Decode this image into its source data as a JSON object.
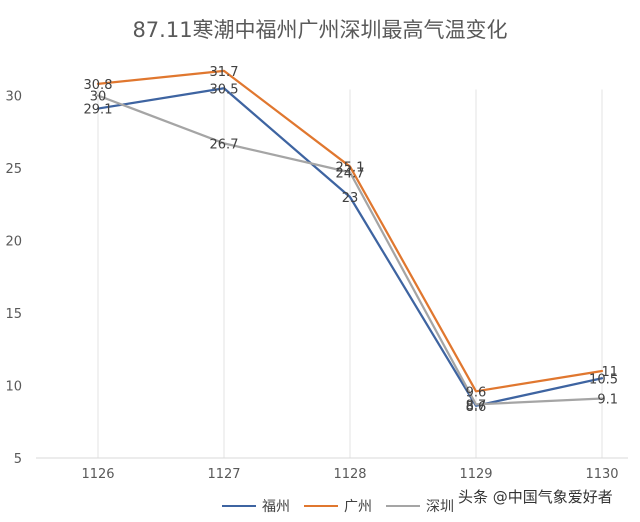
{
  "chart_data": {
    "type": "line",
    "title": "87.11寒潮中福州广州深圳最高气温变化",
    "categories": [
      "1126",
      "1127",
      "1128",
      "1129",
      "1130"
    ],
    "ylim": [
      5,
      33
    ],
    "yticks": [
      5,
      10,
      15,
      20,
      25,
      30
    ],
    "grid": "vertical",
    "legend": "bottom",
    "series": [
      {
        "name": "福州",
        "color": "#3e64a1",
        "values": [
          29.1,
          30.5,
          23,
          8.6,
          10.5
        ]
      },
      {
        "name": "广州",
        "color": "#e0772f",
        "values": [
          30.8,
          31.7,
          25.1,
          9.6,
          11
        ]
      },
      {
        "name": "深圳",
        "color": "#a5a5a5",
        "values": [
          30,
          26.7,
          24.7,
          8.7,
          9.1
        ]
      }
    ]
  },
  "watermark": "头条 @中国气象爱好者"
}
